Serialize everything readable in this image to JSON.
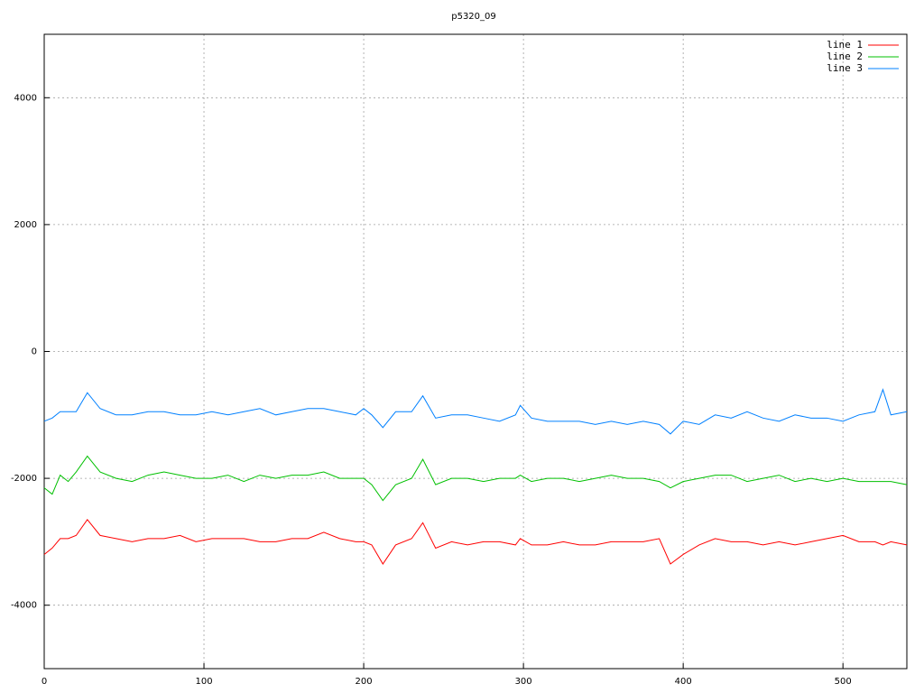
{
  "chart_data": {
    "type": "line",
    "title": "p5320_09",
    "x": [
      0,
      5,
      10,
      15,
      20,
      27,
      35,
      45,
      55,
      65,
      75,
      85,
      95,
      105,
      115,
      125,
      135,
      145,
      155,
      165,
      175,
      185,
      195,
      200,
      205,
      212,
      220,
      230,
      237,
      245,
      255,
      265,
      275,
      285,
      295,
      298,
      305,
      315,
      325,
      335,
      345,
      355,
      365,
      375,
      385,
      392,
      400,
      410,
      420,
      430,
      440,
      450,
      460,
      470,
      480,
      490,
      500,
      510,
      520,
      525,
      530,
      540
    ],
    "series": [
      {
        "name": "line 1",
        "color": "#ff0000",
        "values": [
          -3200,
          -3100,
          -2950,
          -2950,
          -2900,
          -2650,
          -2900,
          -2950,
          -3000,
          -2950,
          -2950,
          -2900,
          -3000,
          -2950,
          -2950,
          -2950,
          -3000,
          -3000,
          -2950,
          -2950,
          -2850,
          -2950,
          -3000,
          -3000,
          -3050,
          -3350,
          -3050,
          -2950,
          -2700,
          -3100,
          -3000,
          -3050,
          -3000,
          -3000,
          -3050,
          -2950,
          -3050,
          -3050,
          -3000,
          -3050,
          -3050,
          -3000,
          -3000,
          -3000,
          -2950,
          -3350,
          -3200,
          -3050,
          -2950,
          -3000,
          -3000,
          -3050,
          -3000,
          -3050,
          -3000,
          -2950,
          -2900,
          -3000,
          -3000,
          -3050,
          -3000,
          -3050
        ]
      },
      {
        "name": "line 2",
        "color": "#00c000",
        "values": [
          -2150,
          -2250,
          -1950,
          -2050,
          -1900,
          -1650,
          -1900,
          -2000,
          -2050,
          -1950,
          -1900,
          -1950,
          -2000,
          -2000,
          -1950,
          -2050,
          -1950,
          -2000,
          -1950,
          -1950,
          -1900,
          -2000,
          -2000,
          -2000,
          -2100,
          -2350,
          -2100,
          -2000,
          -1700,
          -2100,
          -2000,
          -2000,
          -2050,
          -2000,
          -2000,
          -1950,
          -2050,
          -2000,
          -2000,
          -2050,
          -2000,
          -1950,
          -2000,
          -2000,
          -2050,
          -2150,
          -2050,
          -2000,
          -1950,
          -1950,
          -2050,
          -2000,
          -1950,
          -2050,
          -2000,
          -2050,
          -2000,
          -2050,
          -2050,
          -2050,
          -2050,
          -2100
        ]
      },
      {
        "name": "line 3",
        "color": "#0080ff",
        "values": [
          -1100,
          -1050,
          -950,
          -950,
          -950,
          -650,
          -900,
          -1000,
          -1000,
          -950,
          -950,
          -1000,
          -1000,
          -950,
          -1000,
          -950,
          -900,
          -1000,
          -950,
          -900,
          -900,
          -950,
          -1000,
          -900,
          -1000,
          -1200,
          -950,
          -950,
          -700,
          -1050,
          -1000,
          -1000,
          -1050,
          -1100,
          -1000,
          -850,
          -1050,
          -1100,
          -1100,
          -1100,
          -1150,
          -1100,
          -1150,
          -1100,
          -1150,
          -1300,
          -1100,
          -1150,
          -1000,
          -1050,
          -950,
          -1050,
          -1100,
          -1000,
          -1050,
          -1050,
          -1100,
          -1000,
          -950,
          -600,
          -1000,
          -950
        ]
      }
    ],
    "xlim": [
      0,
      540
    ],
    "xticks": [
      0,
      100,
      200,
      300,
      400,
      500
    ],
    "ylim": [
      -5000,
      5000
    ],
    "yticks": [
      -4000,
      -2000,
      0,
      2000,
      4000
    ],
    "grid": true,
    "legend": "top-right"
  }
}
